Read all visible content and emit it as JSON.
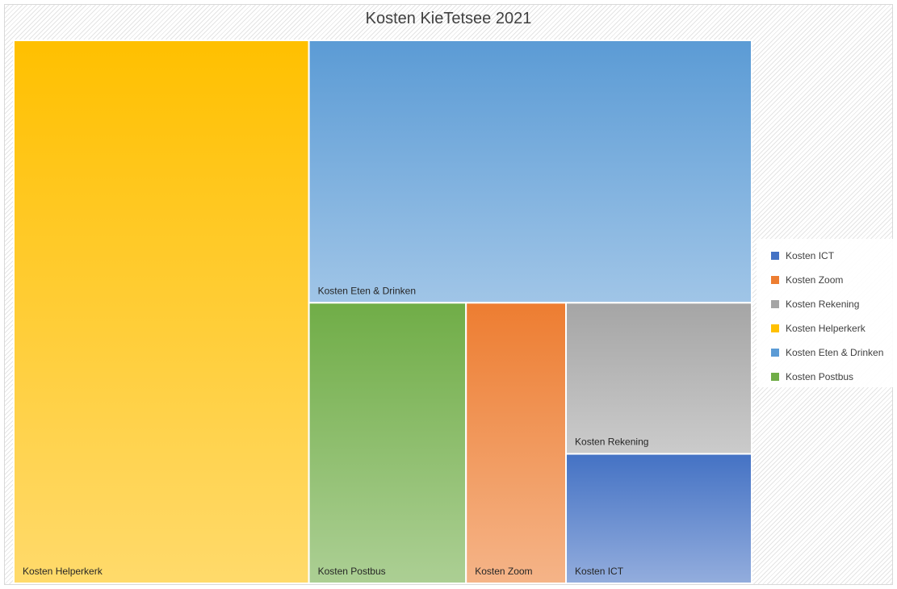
{
  "chart_data": {
    "type": "treemap",
    "title": "Kosten KieTetsee 2021",
    "values_unit": "relative share (estimated from tile areas)",
    "items": [
      {
        "name": "Kosten Helperkerk",
        "value": 40,
        "color": "#ffc000"
      },
      {
        "name": "Kosten Eten & Drinken",
        "value": 29,
        "color": "#5b9bd5"
      },
      {
        "name": "Kosten Postbus",
        "value": 11,
        "color": "#70ad47"
      },
      {
        "name": "Kosten Zoom",
        "value": 7,
        "color": "#ed7d31"
      },
      {
        "name": "Kosten Rekening",
        "value": 7,
        "color": "#a5a5a5"
      },
      {
        "name": "Kosten ICT",
        "value": 6,
        "color": "#4472c4"
      }
    ],
    "legend": {
      "placement": "right",
      "entries": [
        "Kosten ICT",
        "Kosten Zoom",
        "Kosten Rekening",
        "Kosten Helperkerk",
        "Kosten Eten & Drinken",
        "Kosten Postbus"
      ]
    }
  }
}
